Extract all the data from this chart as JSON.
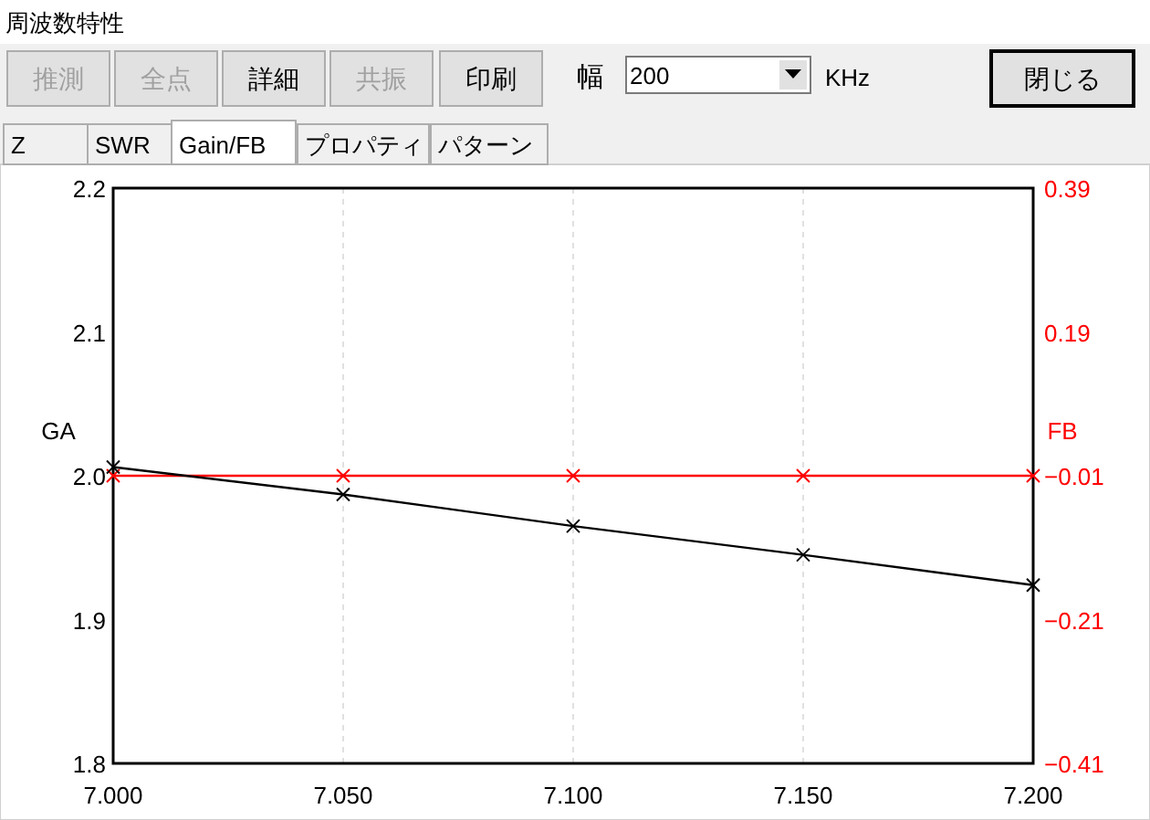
{
  "chart_data": {
    "type": "line",
    "ylabel": "GA",
    "y2label": "FB",
    "annotations": [
      "周波数特性",
      "推測",
      "全点",
      "詳細",
      "共振",
      "印刷",
      "幅",
      "200",
      "KHz",
      "閉じる",
      "Z",
      "SWR",
      "Gain/FB",
      "プロパティ",
      "パターン"
    ],
    "x": [
      7.0,
      7.05,
      7.1,
      7.15,
      7.2
    ],
    "series": [
      {
        "color": "#ff0000",
        "axis": "y2",
        "values": [
          -0.01,
          -0.01,
          -0.01,
          -0.01,
          -0.01
        ]
      },
      {
        "color": "#000000",
        "values": [
          2.006,
          1.987,
          1.965,
          1.945,
          1.924
        ]
      }
    ],
    "xlim": [
      7.0,
      7.2
    ],
    "xticks": [
      {
        "value": 7.0,
        "label": "7.000"
      },
      {
        "value": 7.05,
        "label": "7.050"
      },
      {
        "value": 7.1,
        "label": "7.100"
      },
      {
        "value": 7.15,
        "label": "7.150"
      },
      {
        "value": 7.2,
        "label": "7.200"
      }
    ],
    "ylim": [
      1.8,
      2.2
    ],
    "yticks": [
      {
        "value": 1.8,
        "label": "1.8"
      },
      {
        "value": 1.9,
        "label": "1.9"
      },
      {
        "value": 2.0,
        "label": "2.0"
      },
      {
        "value": 2.1,
        "label": "2.1"
      },
      {
        "value": 2.2,
        "label": "2.2"
      }
    ],
    "y2lim": [
      -0.41,
      0.39
    ],
    "y2ticks": [
      -0.41,
      -0.21,
      -0.01,
      0.19,
      0.39
    ],
    "grid": "x",
    "marker": "cross",
    "line_style": "solid"
  }
}
